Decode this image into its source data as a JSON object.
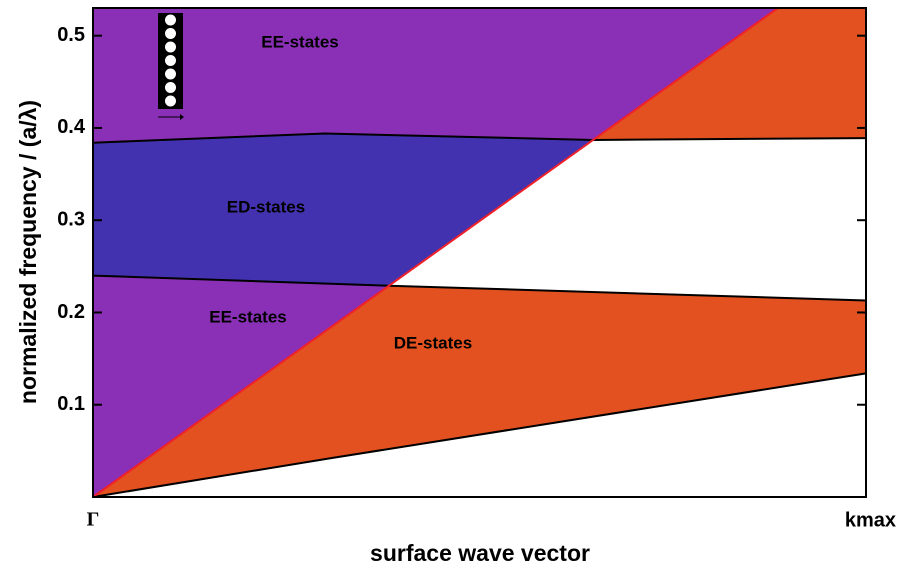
{
  "chart_data": {
    "type": "band",
    "xlabel": "surface wave vector",
    "ylabel": "normalized frequency / (a/λ)",
    "xlim": [
      0,
      1
    ],
    "ylim": [
      0,
      0.53
    ],
    "xticks": [
      {
        "value": 0,
        "label": "Γ"
      },
      {
        "value": 1,
        "label": "kmax"
      }
    ],
    "yticks": [
      0.1,
      0.2,
      0.3,
      0.4,
      0.5
    ],
    "regions": [
      {
        "label": "EE-states",
        "color": "#8a30b6",
        "x": [
          0,
          0,
          0.3,
          0.647,
          0.886
        ],
        "y": [
          0.53,
          0.384,
          0.394,
          0.387,
          0.53
        ]
      },
      {
        "color": "#e2511f",
        "x": [
          0.886,
          0.647,
          1,
          1
        ],
        "y": [
          0.53,
          0.387,
          0.389,
          0.53
        ]
      },
      {
        "label": "ED-states",
        "color": "#4332af",
        "x": [
          0,
          0,
          0.3,
          0.647,
          0.383
        ],
        "y": [
          0.24,
          0.384,
          0.394,
          0.387,
          0.229
        ]
      },
      {
        "label": "EE-states",
        "color": "#8a30b6",
        "x": [
          0,
          0,
          0.383
        ],
        "y": [
          0,
          0.24,
          0.229
        ]
      },
      {
        "label": "DE-states",
        "color": "#e2511f",
        "x": [
          0,
          0.383,
          1,
          1,
          0.307
        ],
        "y": [
          0,
          0.229,
          0.213,
          0.134,
          0.042
        ]
      }
    ],
    "lines": [
      {
        "color": "#000000",
        "x": [
          0,
          0.3,
          0.647,
          1
        ],
        "values": [
          0.384,
          0.394,
          0.387,
          0.389
        ]
      },
      {
        "color": "#000000",
        "x": [
          0,
          0.383,
          1
        ],
        "values": [
          0.24,
          0.229,
          0.213
        ]
      },
      {
        "color": "#000000",
        "x": [
          0,
          0.307,
          1
        ],
        "values": [
          0,
          0.042,
          0.134
        ]
      },
      {
        "color": "#f0202a",
        "x": [
          0,
          0.886
        ],
        "values": [
          0,
          0.53
        ]
      }
    ]
  }
}
